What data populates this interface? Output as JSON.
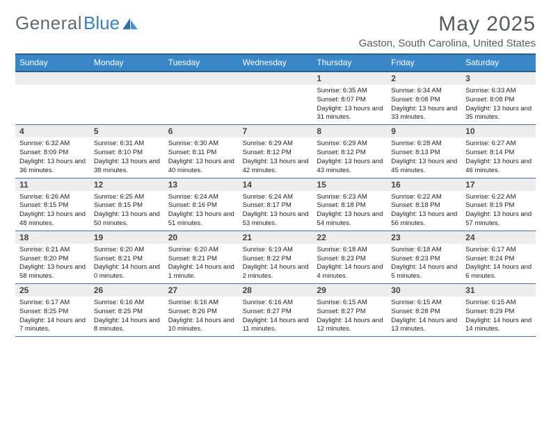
{
  "brand": {
    "part1": "General",
    "part2": "Blue"
  },
  "title": "May 2025",
  "subtitle": "Gaston, South Carolina, United States",
  "colors": {
    "header_bg": "#3a87c7",
    "header_border": "#2a5f8f",
    "brand_gray": "#5f6a72",
    "brand_blue": "#3a7fc0",
    "title_color": "#555a5e",
    "daynum_bg": "#ededed",
    "row_border": "#3a71a0"
  },
  "day_labels": [
    "Sunday",
    "Monday",
    "Tuesday",
    "Wednesday",
    "Thursday",
    "Friday",
    "Saturday"
  ],
  "weeks": [
    [
      {
        "empty": true
      },
      {
        "empty": true
      },
      {
        "empty": true
      },
      {
        "empty": true
      },
      {
        "n": "1",
        "sr": "6:35 AM",
        "ss": "8:07 PM",
        "dl": "13 hours and 31 minutes."
      },
      {
        "n": "2",
        "sr": "6:34 AM",
        "ss": "8:08 PM",
        "dl": "13 hours and 33 minutes."
      },
      {
        "n": "3",
        "sr": "6:33 AM",
        "ss": "8:08 PM",
        "dl": "13 hours and 35 minutes."
      }
    ],
    [
      {
        "n": "4",
        "sr": "6:32 AM",
        "ss": "8:09 PM",
        "dl": "13 hours and 36 minutes."
      },
      {
        "n": "5",
        "sr": "6:31 AM",
        "ss": "8:10 PM",
        "dl": "13 hours and 38 minutes."
      },
      {
        "n": "6",
        "sr": "6:30 AM",
        "ss": "8:11 PM",
        "dl": "13 hours and 40 minutes."
      },
      {
        "n": "7",
        "sr": "6:29 AM",
        "ss": "8:12 PM",
        "dl": "13 hours and 42 minutes."
      },
      {
        "n": "8",
        "sr": "6:29 AM",
        "ss": "8:12 PM",
        "dl": "13 hours and 43 minutes."
      },
      {
        "n": "9",
        "sr": "6:28 AM",
        "ss": "8:13 PM",
        "dl": "13 hours and 45 minutes."
      },
      {
        "n": "10",
        "sr": "6:27 AM",
        "ss": "8:14 PM",
        "dl": "13 hours and 46 minutes."
      }
    ],
    [
      {
        "n": "11",
        "sr": "6:26 AM",
        "ss": "8:15 PM",
        "dl": "13 hours and 48 minutes."
      },
      {
        "n": "12",
        "sr": "6:25 AM",
        "ss": "8:15 PM",
        "dl": "13 hours and 50 minutes."
      },
      {
        "n": "13",
        "sr": "6:24 AM",
        "ss": "8:16 PM",
        "dl": "13 hours and 51 minutes."
      },
      {
        "n": "14",
        "sr": "6:24 AM",
        "ss": "8:17 PM",
        "dl": "13 hours and 53 minutes."
      },
      {
        "n": "15",
        "sr": "6:23 AM",
        "ss": "8:18 PM",
        "dl": "13 hours and 54 minutes."
      },
      {
        "n": "16",
        "sr": "6:22 AM",
        "ss": "8:18 PM",
        "dl": "13 hours and 56 minutes."
      },
      {
        "n": "17",
        "sr": "6:22 AM",
        "ss": "8:19 PM",
        "dl": "13 hours and 57 minutes."
      }
    ],
    [
      {
        "n": "18",
        "sr": "6:21 AM",
        "ss": "8:20 PM",
        "dl": "13 hours and 58 minutes."
      },
      {
        "n": "19",
        "sr": "6:20 AM",
        "ss": "8:21 PM",
        "dl": "14 hours and 0 minutes."
      },
      {
        "n": "20",
        "sr": "6:20 AM",
        "ss": "8:21 PM",
        "dl": "14 hours and 1 minute."
      },
      {
        "n": "21",
        "sr": "6:19 AM",
        "ss": "8:22 PM",
        "dl": "14 hours and 2 minutes."
      },
      {
        "n": "22",
        "sr": "6:18 AM",
        "ss": "8:23 PM",
        "dl": "14 hours and 4 minutes."
      },
      {
        "n": "23",
        "sr": "6:18 AM",
        "ss": "8:23 PM",
        "dl": "14 hours and 5 minutes."
      },
      {
        "n": "24",
        "sr": "6:17 AM",
        "ss": "8:24 PM",
        "dl": "14 hours and 6 minutes."
      }
    ],
    [
      {
        "n": "25",
        "sr": "6:17 AM",
        "ss": "8:25 PM",
        "dl": "14 hours and 7 minutes."
      },
      {
        "n": "26",
        "sr": "6:16 AM",
        "ss": "8:25 PM",
        "dl": "14 hours and 8 minutes."
      },
      {
        "n": "27",
        "sr": "6:16 AM",
        "ss": "8:26 PM",
        "dl": "14 hours and 10 minutes."
      },
      {
        "n": "28",
        "sr": "6:16 AM",
        "ss": "8:27 PM",
        "dl": "14 hours and 11 minutes."
      },
      {
        "n": "29",
        "sr": "6:15 AM",
        "ss": "8:27 PM",
        "dl": "14 hours and 12 minutes."
      },
      {
        "n": "30",
        "sr": "6:15 AM",
        "ss": "8:28 PM",
        "dl": "14 hours and 13 minutes."
      },
      {
        "n": "31",
        "sr": "6:15 AM",
        "ss": "8:29 PM",
        "dl": "14 hours and 14 minutes."
      }
    ]
  ]
}
